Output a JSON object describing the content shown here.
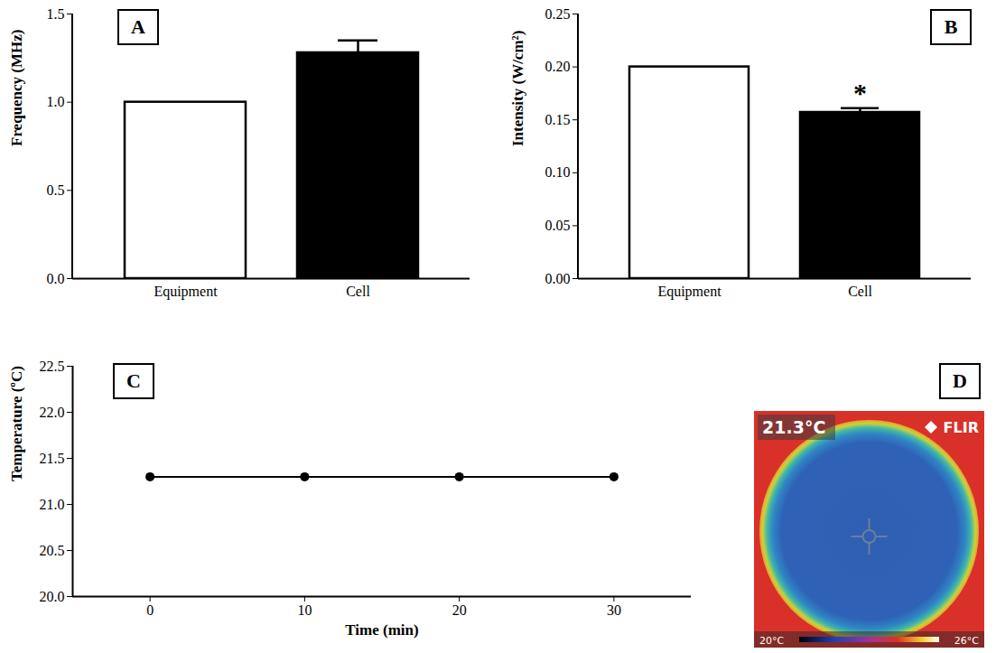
{
  "chart_data": [
    {
      "type": "bar",
      "panel_label": "A",
      "categories": [
        "Equipment",
        "Cell"
      ],
      "values": [
        1.0,
        1.28
      ],
      "errors": [
        0,
        0.07
      ],
      "colors": [
        "#ffffff",
        "#000000"
      ],
      "y_label": "Frequency (MHz)",
      "ylim": [
        0,
        1.5
      ],
      "yticks": [
        {
          "value": 0,
          "label": "0.0"
        },
        {
          "value": 0.5,
          "label": "0.5"
        },
        {
          "value": 1,
          "label": "1.0"
        },
        {
          "value": 1.5,
          "label": "1.5"
        }
      ]
    },
    {
      "type": "bar",
      "panel_label": "B",
      "categories": [
        "Equipment",
        "Cell"
      ],
      "values": [
        0.2,
        0.157
      ],
      "errors": [
        0,
        0.004
      ],
      "colors": [
        "#ffffff",
        "#000000"
      ],
      "y_label": "Intensity (W/cm²)",
      "ylim": [
        0,
        0.25
      ],
      "yticks": [
        {
          "value": 0,
          "label": "0.00"
        },
        {
          "value": 0.05,
          "label": "0.05"
        },
        {
          "value": 0.1,
          "label": "0.10"
        },
        {
          "value": 0.15,
          "label": "0.15"
        },
        {
          "value": 0.2,
          "label": "0.20"
        },
        {
          "value": 0.25,
          "label": "0.25"
        }
      ],
      "annotations": [
        {
          "category": "Cell",
          "text": "*"
        }
      ]
    },
    {
      "type": "line",
      "panel_label": "C",
      "x": [
        0,
        10,
        20,
        30
      ],
      "values": [
        21.3,
        21.3,
        21.3,
        21.3
      ],
      "color": "#000000",
      "marker": "circle",
      "x_label": "Time (min)",
      "y_label": "Temperature (ºC)",
      "xlim": [
        -5,
        35
      ],
      "xticks": [
        0,
        10,
        20,
        30
      ],
      "ylim": [
        20,
        22.5
      ],
      "yticks": [
        {
          "value": 20,
          "label": "20.0"
        },
        {
          "value": 20.5,
          "label": "20.5"
        },
        {
          "value": 21,
          "label": "21.0"
        },
        {
          "value": 21.5,
          "label": "21.5"
        },
        {
          "value": 22,
          "label": "22.0"
        },
        {
          "value": 22.5,
          "label": "22.5"
        }
      ]
    }
  ],
  "thermal_image": {
    "panel_label": "D",
    "reading": "21.3°C",
    "brand": "FLIR",
    "scale_min": "20°C",
    "scale_max": "26°C"
  }
}
